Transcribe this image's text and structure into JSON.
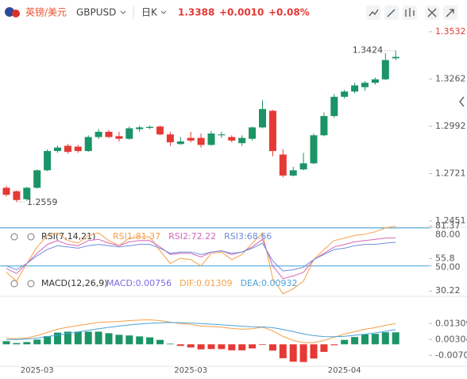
{
  "header": {
    "name": "英镑/美元",
    "symbol": "GBPUSD",
    "period": "日K",
    "price": "1.3388",
    "change": "+0.0010",
    "change_pct": "+0.08%"
  },
  "chart_data": [
    {
      "type": "candlestick",
      "categories": [
        null,
        null,
        null,
        "2025-03",
        null,
        null,
        null,
        null,
        null,
        null,
        null,
        null,
        null,
        null,
        null,
        null,
        null,
        null,
        "2025-03",
        null,
        null,
        null,
        null,
        null,
        null,
        null,
        null,
        null,
        null,
        null,
        null,
        null,
        null,
        "2025-04",
        null,
        null,
        null,
        null,
        null
      ],
      "open": [
        1.264,
        1.262,
        1.2575,
        1.264,
        1.274,
        1.285,
        1.288,
        1.2875,
        1.285,
        1.293,
        1.296,
        1.2935,
        1.292,
        1.2975,
        1.2982,
        1.299,
        1.2945,
        1.289,
        1.2925,
        1.2925,
        1.2885,
        1.294,
        1.293,
        1.2895,
        1.292,
        1.2985,
        1.308,
        1.283,
        1.271,
        1.2745,
        1.278,
        1.294,
        1.305,
        1.316,
        1.319,
        1.3215,
        1.324,
        1.326,
        1.338
      ],
      "high": [
        1.265,
        1.2625,
        1.2645,
        1.2745,
        1.286,
        1.288,
        1.289,
        1.2885,
        1.294,
        1.2975,
        1.297,
        1.296,
        1.299,
        1.2995,
        1.2997,
        1.2995,
        1.296,
        1.293,
        1.296,
        1.295,
        1.2965,
        1.296,
        1.294,
        1.294,
        1.299,
        1.314,
        1.3085,
        1.286,
        1.276,
        1.284,
        1.295,
        1.307,
        1.3175,
        1.32,
        1.324,
        1.325,
        1.327,
        1.341,
        1.3424
      ],
      "low": [
        1.259,
        1.2559,
        1.2565,
        1.2635,
        1.2735,
        1.284,
        1.2835,
        1.284,
        1.2845,
        1.292,
        1.2925,
        1.2905,
        1.2915,
        1.296,
        1.2975,
        1.294,
        1.288,
        1.2885,
        1.29,
        1.287,
        1.288,
        1.2925,
        1.29,
        1.288,
        1.291,
        1.298,
        1.282,
        1.27,
        1.2705,
        1.274,
        1.2775,
        1.2935,
        1.304,
        1.315,
        1.318,
        1.3195,
        1.323,
        1.3255,
        1.337
      ],
      "close": [
        1.26,
        1.257,
        1.264,
        1.274,
        1.285,
        1.287,
        1.2845,
        1.285,
        1.293,
        1.296,
        1.293,
        1.292,
        1.298,
        1.2985,
        1.2988,
        1.2945,
        1.29,
        1.2905,
        1.291,
        1.2885,
        1.295,
        1.2945,
        1.291,
        1.2925,
        1.2985,
        1.309,
        1.285,
        1.271,
        1.274,
        1.278,
        1.294,
        1.305,
        1.316,
        1.319,
        1.3225,
        1.324,
        1.326,
        1.337,
        1.3388
      ],
      "up_color": "#1b9467",
      "down_color": "#e53935",
      "ylim": [
        1.2419,
        1.3577
      ],
      "yticks": [
        1.3532,
        1.3262,
        1.2992,
        1.2721,
        1.2451
      ],
      "grid": false
    },
    {
      "type": "rsi",
      "title": "RSI(7,14,21)",
      "series": [
        {
          "name": "RSI1:81.37",
          "color": "#f5a04a",
          "values": [
            45,
            38,
            52,
            65,
            74,
            76,
            70,
            68,
            74,
            76,
            70,
            66,
            72,
            73,
            73,
            62,
            52,
            56,
            55,
            50,
            60,
            61,
            55,
            59,
            68,
            76,
            40,
            28,
            32,
            38,
            55,
            63,
            70,
            72,
            74,
            75,
            77,
            80,
            81.37
          ]
        },
        {
          "name": "RSI2:72.22",
          "color": "#d466b8",
          "values": [
            48,
            44,
            52,
            60,
            67,
            70,
            67,
            66,
            70,
            71,
            68,
            66,
            69,
            70,
            70,
            65,
            59,
            60,
            60,
            57,
            61,
            62,
            59,
            61,
            65,
            71,
            50,
            40,
            42,
            45,
            55,
            60,
            65,
            67,
            69,
            70,
            71,
            72,
            72.22
          ]
        },
        {
          "name": "RSI3:68.66",
          "color": "#6f8de0",
          "values": [
            50,
            47,
            52,
            58,
            63,
            66,
            65,
            64,
            66,
            67,
            66,
            65,
            66,
            67,
            67,
            64,
            60,
            61,
            61,
            59,
            61,
            62,
            60,
            61,
            64,
            68,
            54,
            46,
            47,
            49,
            55,
            59,
            63,
            64,
            66,
            67,
            67,
            68,
            68.66
          ]
        }
      ],
      "levels": [
        {
          "value": 80,
          "label": "80.00"
        },
        {
          "value": 50,
          "label": "50.00"
        }
      ],
      "level_color": "#3aa0d8",
      "ylim": [
        26.6,
        81.8
      ],
      "yticks": [
        81.37,
        55.8,
        30.22
      ]
    },
    {
      "type": "macd",
      "title": "MACD(12,26,9)",
      "series": [
        {
          "name": "MACD:0.00756",
          "color": "#7b6be0",
          "up_color": "#1b9467",
          "down_color": "#e53935",
          "values": [
            0.002,
            0.0008,
            0.0014,
            0.003,
            0.0052,
            0.0074,
            0.008,
            0.008,
            0.008,
            0.008,
            0.007,
            0.006,
            0.0056,
            0.005,
            0.0044,
            0.0028,
            0.0004,
            -0.001,
            -0.002,
            -0.0032,
            -0.003,
            -0.003,
            -0.0038,
            -0.0038,
            -0.0026,
            -0.0004,
            -0.004,
            -0.0088,
            -0.011,
            -0.0112,
            -0.009,
            -0.0048,
            -0.0006,
            0.0028,
            0.0046,
            0.0062,
            0.0066,
            0.0076,
            0.00756
          ]
        },
        {
          "name": "DIF:0.01309",
          "color": "#f5a04a",
          "values": [
            0.004,
            0.0035,
            0.004,
            0.0055,
            0.0075,
            0.0095,
            0.0108,
            0.0118,
            0.0128,
            0.0138,
            0.0142,
            0.0145,
            0.015,
            0.0153,
            0.0155,
            0.015,
            0.014,
            0.0132,
            0.0125,
            0.0115,
            0.0112,
            0.0108,
            0.01,
            0.0095,
            0.0098,
            0.0108,
            0.0085,
            0.005,
            0.0025,
            0.001,
            0.001,
            0.0025,
            0.0045,
            0.0065,
            0.008,
            0.0095,
            0.0105,
            0.012,
            0.01309
          ]
        },
        {
          "name": "DEA:0.00932",
          "color": "#4aa3d8",
          "values": [
            0.003,
            0.0031,
            0.0033,
            0.004,
            0.0049,
            0.0058,
            0.0068,
            0.0078,
            0.0088,
            0.0098,
            0.0107,
            0.0115,
            0.0122,
            0.0128,
            0.0133,
            0.0136,
            0.0138,
            0.0137,
            0.0135,
            0.0131,
            0.0127,
            0.0123,
            0.0119,
            0.0114,
            0.0111,
            0.011,
            0.0105,
            0.0094,
            0.008,
            0.0066,
            0.0055,
            0.0049,
            0.0048,
            0.0051,
            0.0057,
            0.0064,
            0.0072,
            0.0082,
            0.00932
          ]
        }
      ],
      "ylim": [
        -0.0134,
        0.0288
      ],
      "yticks": [
        0.01309,
        0.00304,
        -0.00701
      ]
    }
  ]
}
